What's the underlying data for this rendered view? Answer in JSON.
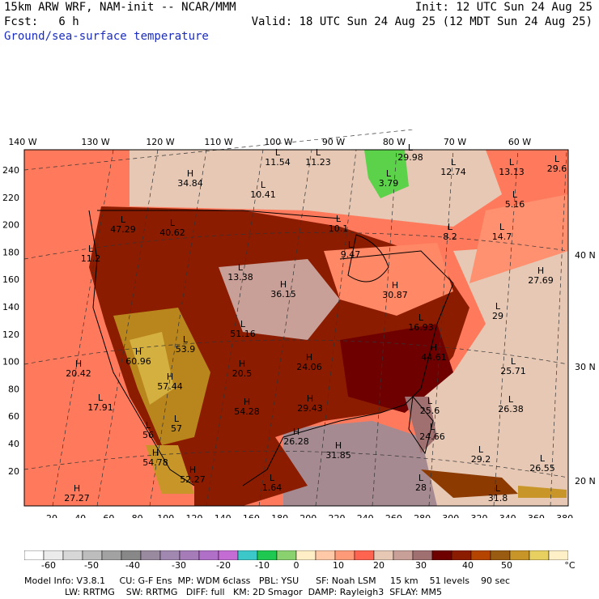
{
  "header": {
    "title": "15km ARW WRF, NAM-init -- NCAR/MMM",
    "init": "Init: 12 UTC Sun 24 Aug 25",
    "fcst": "Fcst:   6 h",
    "valid": "Valid: 18 UTC Sun 24 Aug 25 (12 MDT Sun 24 Aug 25)",
    "field": "Ground/sea-surface temperature"
  },
  "map": {
    "top_lon_labels": [
      "140 W",
      "130 W",
      "120 W",
      "110 W",
      "100 W",
      "90 W",
      "80 W",
      "70 W",
      "60 W"
    ],
    "right_lat_labels": [
      "40 N",
      "30 N",
      "20 N"
    ],
    "y_ticks": [
      "240",
      "220",
      "200",
      "180",
      "160",
      "140",
      "120",
      "100",
      "80",
      "60",
      "40",
      "20"
    ],
    "x_ticks": [
      "20",
      "40",
      "60",
      "80",
      "100",
      "120",
      "140",
      "160",
      "180",
      "200",
      "220",
      "240",
      "260",
      "280",
      "300",
      "320",
      "340",
      "360",
      "380"
    ],
    "extrema": [
      {
        "type": "L",
        "value": "11.54"
      },
      {
        "type": "L",
        "value": "11.23"
      },
      {
        "type": "L",
        "value": "29.98"
      },
      {
        "type": "L",
        "value": "12.74"
      },
      {
        "type": "L",
        "value": "13.13"
      },
      {
        "type": "L",
        "value": "29.6"
      },
      {
        "type": "H",
        "value": "34.84"
      },
      {
        "type": "L",
        "value": "3.79"
      },
      {
        "type": "L",
        "value": "10.41"
      },
      {
        "type": "L",
        "value": "5.16"
      },
      {
        "type": "L",
        "value": "10.1"
      },
      {
        "type": "L",
        "value": "8.2"
      },
      {
        "type": "L",
        "value": "14.7"
      },
      {
        "type": "L",
        "value": "11.2"
      },
      {
        "type": "L",
        "value": "9.47"
      },
      {
        "type": "L",
        "value": "13.38"
      },
      {
        "type": "L",
        "value": "40.62"
      },
      {
        "type": "L",
        "value": "47.29"
      },
      {
        "type": "H",
        "value": "36.15"
      },
      {
        "type": "H",
        "value": "30.87"
      },
      {
        "type": "H",
        "value": "27.69"
      },
      {
        "type": "L",
        "value": "29"
      },
      {
        "type": "L",
        "value": "51.16"
      },
      {
        "type": "L",
        "value": "53.9"
      },
      {
        "type": "L",
        "value": "16.93"
      },
      {
        "type": "H",
        "value": "60.96"
      },
      {
        "type": "H",
        "value": "20.42"
      },
      {
        "type": "H",
        "value": "20.5"
      },
      {
        "type": "H",
        "value": "24.06"
      },
      {
        "type": "H",
        "value": "44.61"
      },
      {
        "type": "L",
        "value": "25.71"
      },
      {
        "type": "H",
        "value": "57.44"
      },
      {
        "type": "L",
        "value": "17.91"
      },
      {
        "type": "L",
        "value": "26.38"
      },
      {
        "type": "H",
        "value": "54.28"
      },
      {
        "type": "H",
        "value": "29.43"
      },
      {
        "type": "L",
        "value": "25.6"
      },
      {
        "type": "L",
        "value": "57"
      },
      {
        "type": "L",
        "value": "56"
      },
      {
        "type": "H",
        "value": "26.28"
      },
      {
        "type": "H",
        "value": "31.85"
      },
      {
        "type": "L",
        "value": "24.66"
      },
      {
        "type": "L",
        "value": "29.2"
      },
      {
        "type": "H",
        "value": "54.78"
      },
      {
        "type": "H",
        "value": "52.27"
      },
      {
        "type": "L",
        "value": "26.55"
      },
      {
        "type": "L",
        "value": "1.64"
      },
      {
        "type": "L",
        "value": "28"
      },
      {
        "type": "H",
        "value": "27.27"
      },
      {
        "type": "L",
        "value": "31.8"
      }
    ]
  },
  "colorbar": {
    "colors": [
      "#ffffff",
      "#ebebeb",
      "#d7d7d7",
      "#bdbdbd",
      "#a2a2a2",
      "#888888",
      "#9a8aa0",
      "#a088b0",
      "#a67cb8",
      "#b070c8",
      "#c46cd4",
      "#3cc8c8",
      "#1fc851",
      "#8ad270",
      "#ffeec6",
      "#ffc8a6",
      "#ff9a78",
      "#ff6450",
      "#e6c8b4",
      "#c8a098",
      "#a07070",
      "#6e0000",
      "#8c1c00",
      "#b44400",
      "#9a5c10",
      "#c89628",
      "#e8d060",
      "#fff0c8"
    ],
    "labels": [
      "-60",
      "-50",
      "-40",
      "-30",
      "-20",
      "-10",
      "0",
      "10",
      "20",
      "30",
      "40",
      "50",
      "°C"
    ]
  },
  "footer": {
    "line1": "Model Info: V3.8.1     CU: G-F Ens  MP: WDM 6class   PBL: YSU      SF: Noah LSM     15 km    51 levels    90 sec",
    "line2": "LW: RRTMG    SW: RRTMG   DIFF: full   KM: 2D Smagor  DAMP: Rayleigh3  SFLAY: MM5"
  }
}
